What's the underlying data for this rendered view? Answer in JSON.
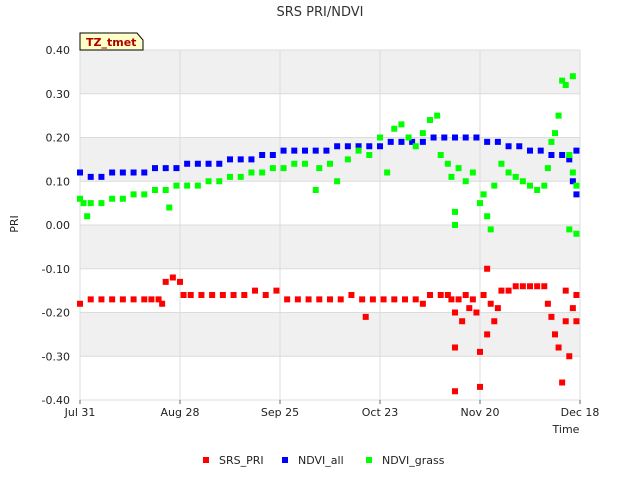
{
  "chart_data": {
    "type": "scatter",
    "title": "SRS PRI/NDVI",
    "badge": "TZ_tmet",
    "xlabel": "Time",
    "ylabel": "PRI",
    "ylim": [
      -0.4,
      0.4
    ],
    "yticks": [
      "0.40",
      "0.30",
      "0.20",
      "0.10",
      "0.00",
      "-0.10",
      "-0.20",
      "-0.30",
      "-0.40"
    ],
    "ytick_values": [
      0.4,
      0.3,
      0.2,
      0.1,
      0.0,
      -0.1,
      -0.2,
      -0.3,
      -0.4
    ],
    "xlim_days": [
      0,
      140
    ],
    "xticks": [
      "Jul 31",
      "Aug 28",
      "Sep 25",
      "Oct 23",
      "Nov 20",
      "Dec 18"
    ],
    "xtick_days": [
      0,
      28,
      56,
      84,
      112,
      140
    ],
    "grid": true,
    "legend_position": "bottom",
    "series": [
      {
        "name": "SRS_PRI",
        "color": "#ff0000",
        "points": [
          [
            0,
            -0.18
          ],
          [
            3,
            -0.17
          ],
          [
            6,
            -0.17
          ],
          [
            9,
            -0.17
          ],
          [
            12,
            -0.17
          ],
          [
            15,
            -0.17
          ],
          [
            18,
            -0.17
          ],
          [
            20,
            -0.17
          ],
          [
            22,
            -0.17
          ],
          [
            23,
            -0.18
          ],
          [
            24,
            -0.13
          ],
          [
            26,
            -0.12
          ],
          [
            28,
            -0.13
          ],
          [
            29,
            -0.16
          ],
          [
            31,
            -0.16
          ],
          [
            34,
            -0.16
          ],
          [
            37,
            -0.16
          ],
          [
            40,
            -0.16
          ],
          [
            43,
            -0.16
          ],
          [
            46,
            -0.16
          ],
          [
            49,
            -0.15
          ],
          [
            52,
            -0.16
          ],
          [
            55,
            -0.15
          ],
          [
            58,
            -0.17
          ],
          [
            61,
            -0.17
          ],
          [
            64,
            -0.17
          ],
          [
            67,
            -0.17
          ],
          [
            70,
            -0.17
          ],
          [
            73,
            -0.17
          ],
          [
            76,
            -0.16
          ],
          [
            79,
            -0.17
          ],
          [
            80,
            -0.21
          ],
          [
            82,
            -0.17
          ],
          [
            85,
            -0.17
          ],
          [
            88,
            -0.17
          ],
          [
            91,
            -0.17
          ],
          [
            94,
            -0.17
          ],
          [
            96,
            -0.18
          ],
          [
            98,
            -0.16
          ],
          [
            101,
            -0.16
          ],
          [
            103,
            -0.16
          ],
          [
            104,
            -0.17
          ],
          [
            105,
            -0.2
          ],
          [
            105,
            -0.28
          ],
          [
            105,
            -0.38
          ],
          [
            106,
            -0.17
          ],
          [
            107,
            -0.22
          ],
          [
            108,
            -0.16
          ],
          [
            109,
            -0.19
          ],
          [
            110,
            -0.17
          ],
          [
            111,
            -0.2
          ],
          [
            112,
            -0.29
          ],
          [
            112,
            -0.37
          ],
          [
            113,
            -0.16
          ],
          [
            114,
            -0.1
          ],
          [
            114,
            -0.25
          ],
          [
            115,
            -0.18
          ],
          [
            116,
            -0.22
          ],
          [
            117,
            -0.19
          ],
          [
            118,
            -0.15
          ],
          [
            120,
            -0.15
          ],
          [
            122,
            -0.14
          ],
          [
            124,
            -0.14
          ],
          [
            126,
            -0.14
          ],
          [
            128,
            -0.14
          ],
          [
            130,
            -0.14
          ],
          [
            131,
            -0.18
          ],
          [
            132,
            -0.21
          ],
          [
            133,
            -0.25
          ],
          [
            134,
            -0.28
          ],
          [
            135,
            -0.36
          ],
          [
            136,
            -0.22
          ],
          [
            136,
            -0.15
          ],
          [
            137,
            -0.3
          ],
          [
            138,
            -0.19
          ],
          [
            139,
            -0.22
          ],
          [
            139,
            -0.16
          ]
        ]
      },
      {
        "name": "NDVI_all",
        "color": "#0000ff",
        "points": [
          [
            0,
            0.12
          ],
          [
            3,
            0.11
          ],
          [
            6,
            0.11
          ],
          [
            9,
            0.12
          ],
          [
            12,
            0.12
          ],
          [
            15,
            0.12
          ],
          [
            18,
            0.12
          ],
          [
            21,
            0.13
          ],
          [
            24,
            0.13
          ],
          [
            27,
            0.13
          ],
          [
            30,
            0.14
          ],
          [
            33,
            0.14
          ],
          [
            36,
            0.14
          ],
          [
            39,
            0.14
          ],
          [
            42,
            0.15
          ],
          [
            45,
            0.15
          ],
          [
            48,
            0.15
          ],
          [
            51,
            0.16
          ],
          [
            54,
            0.16
          ],
          [
            57,
            0.17
          ],
          [
            60,
            0.17
          ],
          [
            63,
            0.17
          ],
          [
            66,
            0.17
          ],
          [
            69,
            0.17
          ],
          [
            72,
            0.18
          ],
          [
            75,
            0.18
          ],
          [
            78,
            0.18
          ],
          [
            81,
            0.18
          ],
          [
            84,
            0.18
          ],
          [
            87,
            0.19
          ],
          [
            90,
            0.19
          ],
          [
            93,
            0.19
          ],
          [
            96,
            0.19
          ],
          [
            99,
            0.2
          ],
          [
            102,
            0.2
          ],
          [
            105,
            0.2
          ],
          [
            108,
            0.2
          ],
          [
            111,
            0.2
          ],
          [
            114,
            0.19
          ],
          [
            117,
            0.19
          ],
          [
            120,
            0.18
          ],
          [
            123,
            0.18
          ],
          [
            126,
            0.17
          ],
          [
            129,
            0.17
          ],
          [
            132,
            0.16
          ],
          [
            135,
            0.16
          ],
          [
            137,
            0.15
          ],
          [
            138,
            0.1
          ],
          [
            139,
            0.07
          ],
          [
            139,
            0.17
          ]
        ]
      },
      {
        "name": "NDVI_grass",
        "color": "#00ff00",
        "points": [
          [
            0,
            0.06
          ],
          [
            1,
            0.05
          ],
          [
            2,
            0.02
          ],
          [
            3,
            0.05
          ],
          [
            6,
            0.05
          ],
          [
            9,
            0.06
          ],
          [
            12,
            0.06
          ],
          [
            15,
            0.07
          ],
          [
            18,
            0.07
          ],
          [
            21,
            0.08
          ],
          [
            24,
            0.08
          ],
          [
            25,
            0.04
          ],
          [
            27,
            0.09
          ],
          [
            30,
            0.09
          ],
          [
            33,
            0.09
          ],
          [
            36,
            0.1
          ],
          [
            39,
            0.1
          ],
          [
            42,
            0.11
          ],
          [
            45,
            0.11
          ],
          [
            48,
            0.12
          ],
          [
            51,
            0.12
          ],
          [
            54,
            0.13
          ],
          [
            57,
            0.13
          ],
          [
            60,
            0.14
          ],
          [
            63,
            0.14
          ],
          [
            66,
            0.08
          ],
          [
            67,
            0.13
          ],
          [
            70,
            0.14
          ],
          [
            72,
            0.1
          ],
          [
            75,
            0.15
          ],
          [
            78,
            0.17
          ],
          [
            81,
            0.16
          ],
          [
            84,
            0.2
          ],
          [
            86,
            0.12
          ],
          [
            88,
            0.22
          ],
          [
            90,
            0.23
          ],
          [
            92,
            0.2
          ],
          [
            94,
            0.18
          ],
          [
            96,
            0.21
          ],
          [
            98,
            0.24
          ],
          [
            100,
            0.25
          ],
          [
            101,
            0.16
          ],
          [
            103,
            0.14
          ],
          [
            104,
            0.11
          ],
          [
            105,
            0.03
          ],
          [
            105,
            0.0
          ],
          [
            106,
            0.13
          ],
          [
            108,
            0.1
          ],
          [
            110,
            0.12
          ],
          [
            112,
            0.05
          ],
          [
            113,
            0.07
          ],
          [
            114,
            0.02
          ],
          [
            115,
            -0.01
          ],
          [
            116,
            0.09
          ],
          [
            118,
            0.14
          ],
          [
            120,
            0.12
          ],
          [
            122,
            0.11
          ],
          [
            124,
            0.1
          ],
          [
            126,
            0.09
          ],
          [
            128,
            0.08
          ],
          [
            130,
            0.09
          ],
          [
            131,
            0.13
          ],
          [
            132,
            0.19
          ],
          [
            133,
            0.21
          ],
          [
            134,
            0.25
          ],
          [
            135,
            0.33
          ],
          [
            136,
            0.32
          ],
          [
            137,
            0.16
          ],
          [
            137,
            -0.01
          ],
          [
            138,
            0.34
          ],
          [
            138,
            0.12
          ],
          [
            139,
            -0.02
          ],
          [
            139,
            0.09
          ]
        ]
      }
    ]
  }
}
